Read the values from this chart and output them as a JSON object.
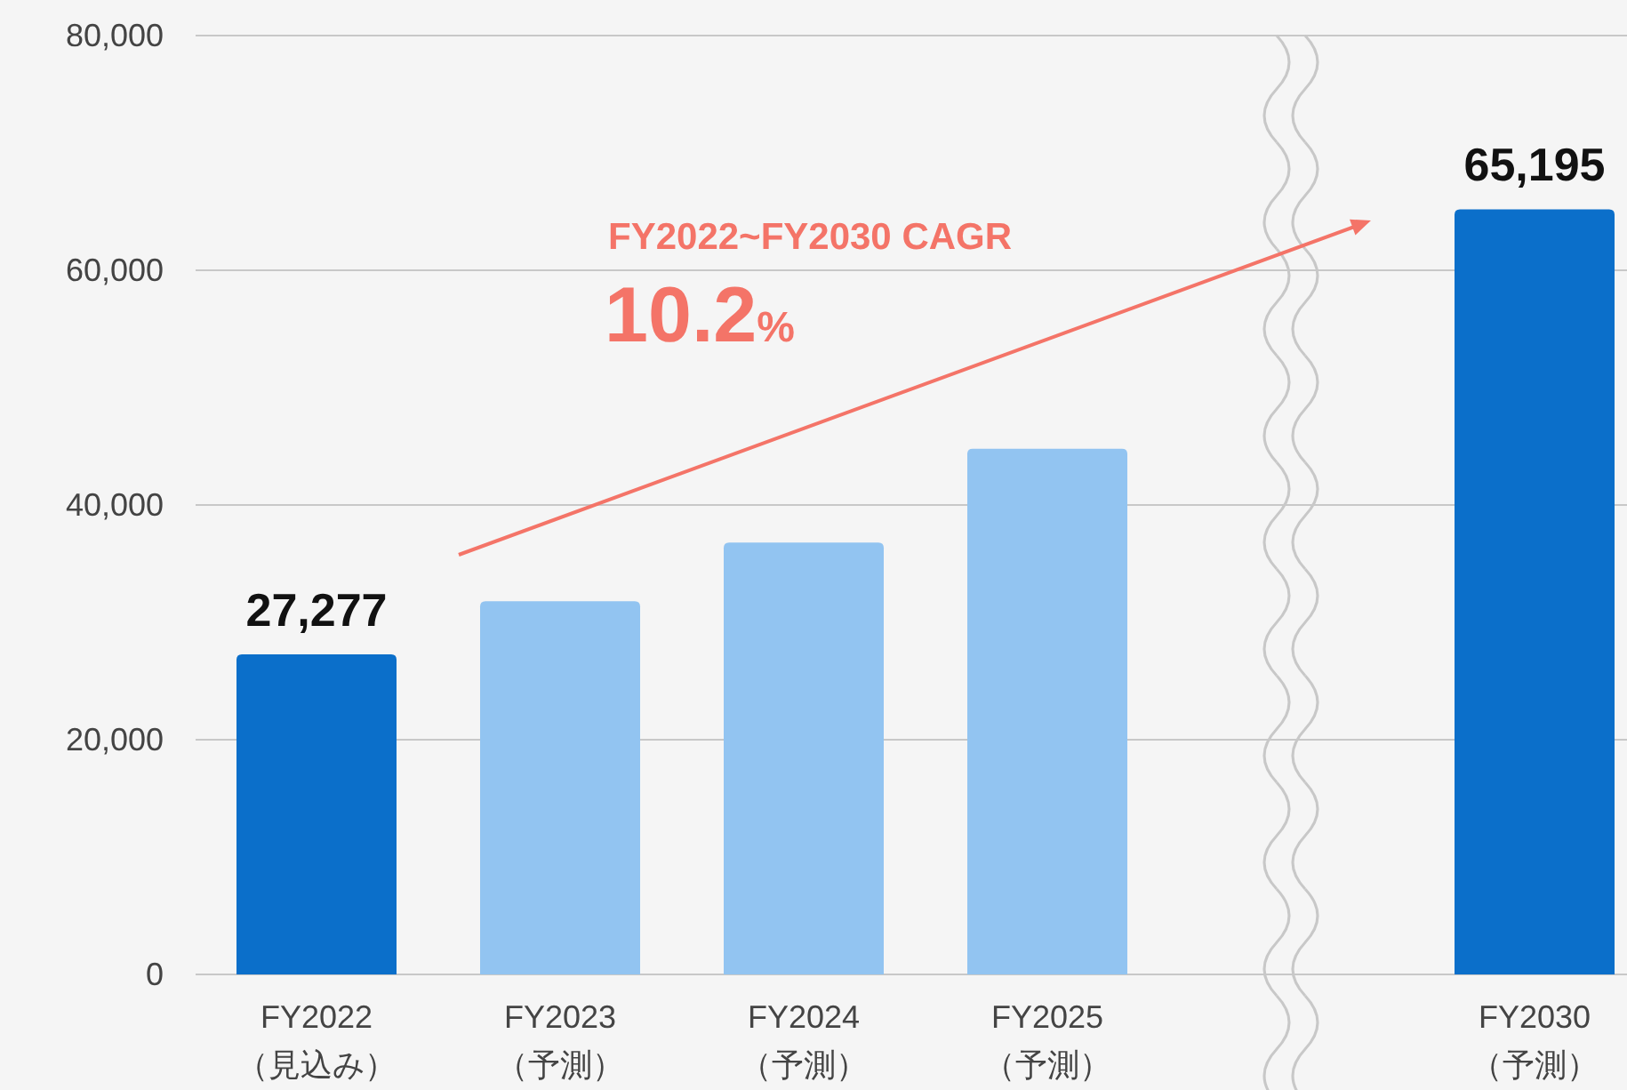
{
  "chart_data": {
    "type": "bar",
    "categories": [
      "FY2022\n（見込み）",
      "FY2023\n（予測）",
      "FY2024\n（予測）",
      "FY2025\n（予測）",
      null,
      "FY2030\n（予測）"
    ],
    "values": [
      27277,
      31800,
      36800,
      44800,
      null,
      65195
    ],
    "colors": [
      "#0b6fca",
      "#92c4f1",
      "#92c4f1",
      "#92c4f1",
      null,
      "#0b6fca"
    ],
    "value_labels": [
      "27,277",
      null,
      null,
      null,
      null,
      "65,195"
    ],
    "ylim": [
      0,
      80000
    ],
    "yticks": [
      {
        "value": 0,
        "label": "0"
      },
      {
        "value": 20000,
        "label": "20,000"
      },
      {
        "value": 40000,
        "label": "40,000"
      },
      {
        "value": 60000,
        "label": "60,000"
      },
      {
        "value": 80000,
        "label": "80,000"
      }
    ],
    "grid": "y",
    "annotations": [
      "FY2022~FY2030 CAGR",
      "10.2%"
    ]
  }
}
